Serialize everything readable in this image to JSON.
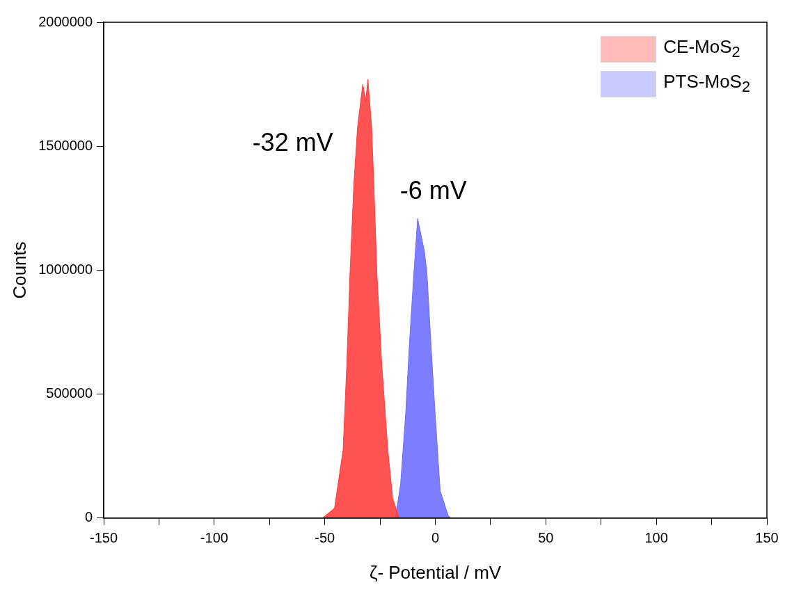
{
  "chart_data": {
    "type": "area",
    "xlabel": "ζ- Potential / mV",
    "ylabel": "Counts",
    "xlim": [
      -150,
      150
    ],
    "xticks": [
      -150,
      {
        "value": -125,
        "label": null
      },
      -100,
      {
        "value": -75,
        "label": null
      },
      -50,
      {
        "value": -25,
        "label": null
      },
      0,
      {
        "value": 25,
        "label": null
      },
      50,
      {
        "value": 75,
        "label": null
      },
      100,
      {
        "value": 125,
        "label": null
      },
      150
    ],
    "ylim": [
      0,
      2000000
    ],
    "yticks": [
      0,
      500000,
      1000000,
      1500000,
      2000000
    ],
    "grid": false,
    "legend": "top right",
    "series": [
      {
        "name": "CE-MoS$_{2}$",
        "color": "#ff3b3b",
        "x": [
          -51,
          -45.6,
          -41.7,
          -40,
          -38.6,
          -36.9,
          -35.2,
          -32.8,
          -31.5,
          -30.5,
          -28.8,
          -27.8,
          -26.4,
          -24.3,
          -21.5,
          -19.3,
          -16.4
        ],
        "values": [
          0,
          40000,
          276000,
          630000,
          984000,
          1340000,
          1575000,
          1750000,
          1680000,
          1770000,
          1575000,
          1340000,
          984000,
          630000,
          276000,
          80000,
          0
        ]
      },
      {
        "name": "PTS-MoS$_{2}$",
        "color": "#6b6bff",
        "x": [
          -18,
          -15.7,
          -13.4,
          -11.7,
          -9.7,
          -8,
          -4.9,
          -3.8,
          -2,
          -0.1,
          2.2,
          5.8,
          7
        ],
        "values": [
          0,
          139000,
          422000,
          705000,
          989000,
          1208000,
          1074000,
          989000,
          705000,
          422000,
          110000,
          10000,
          0
        ]
      }
    ],
    "annotations": [
      "-32 mV",
      "-6 mV"
    ]
  }
}
